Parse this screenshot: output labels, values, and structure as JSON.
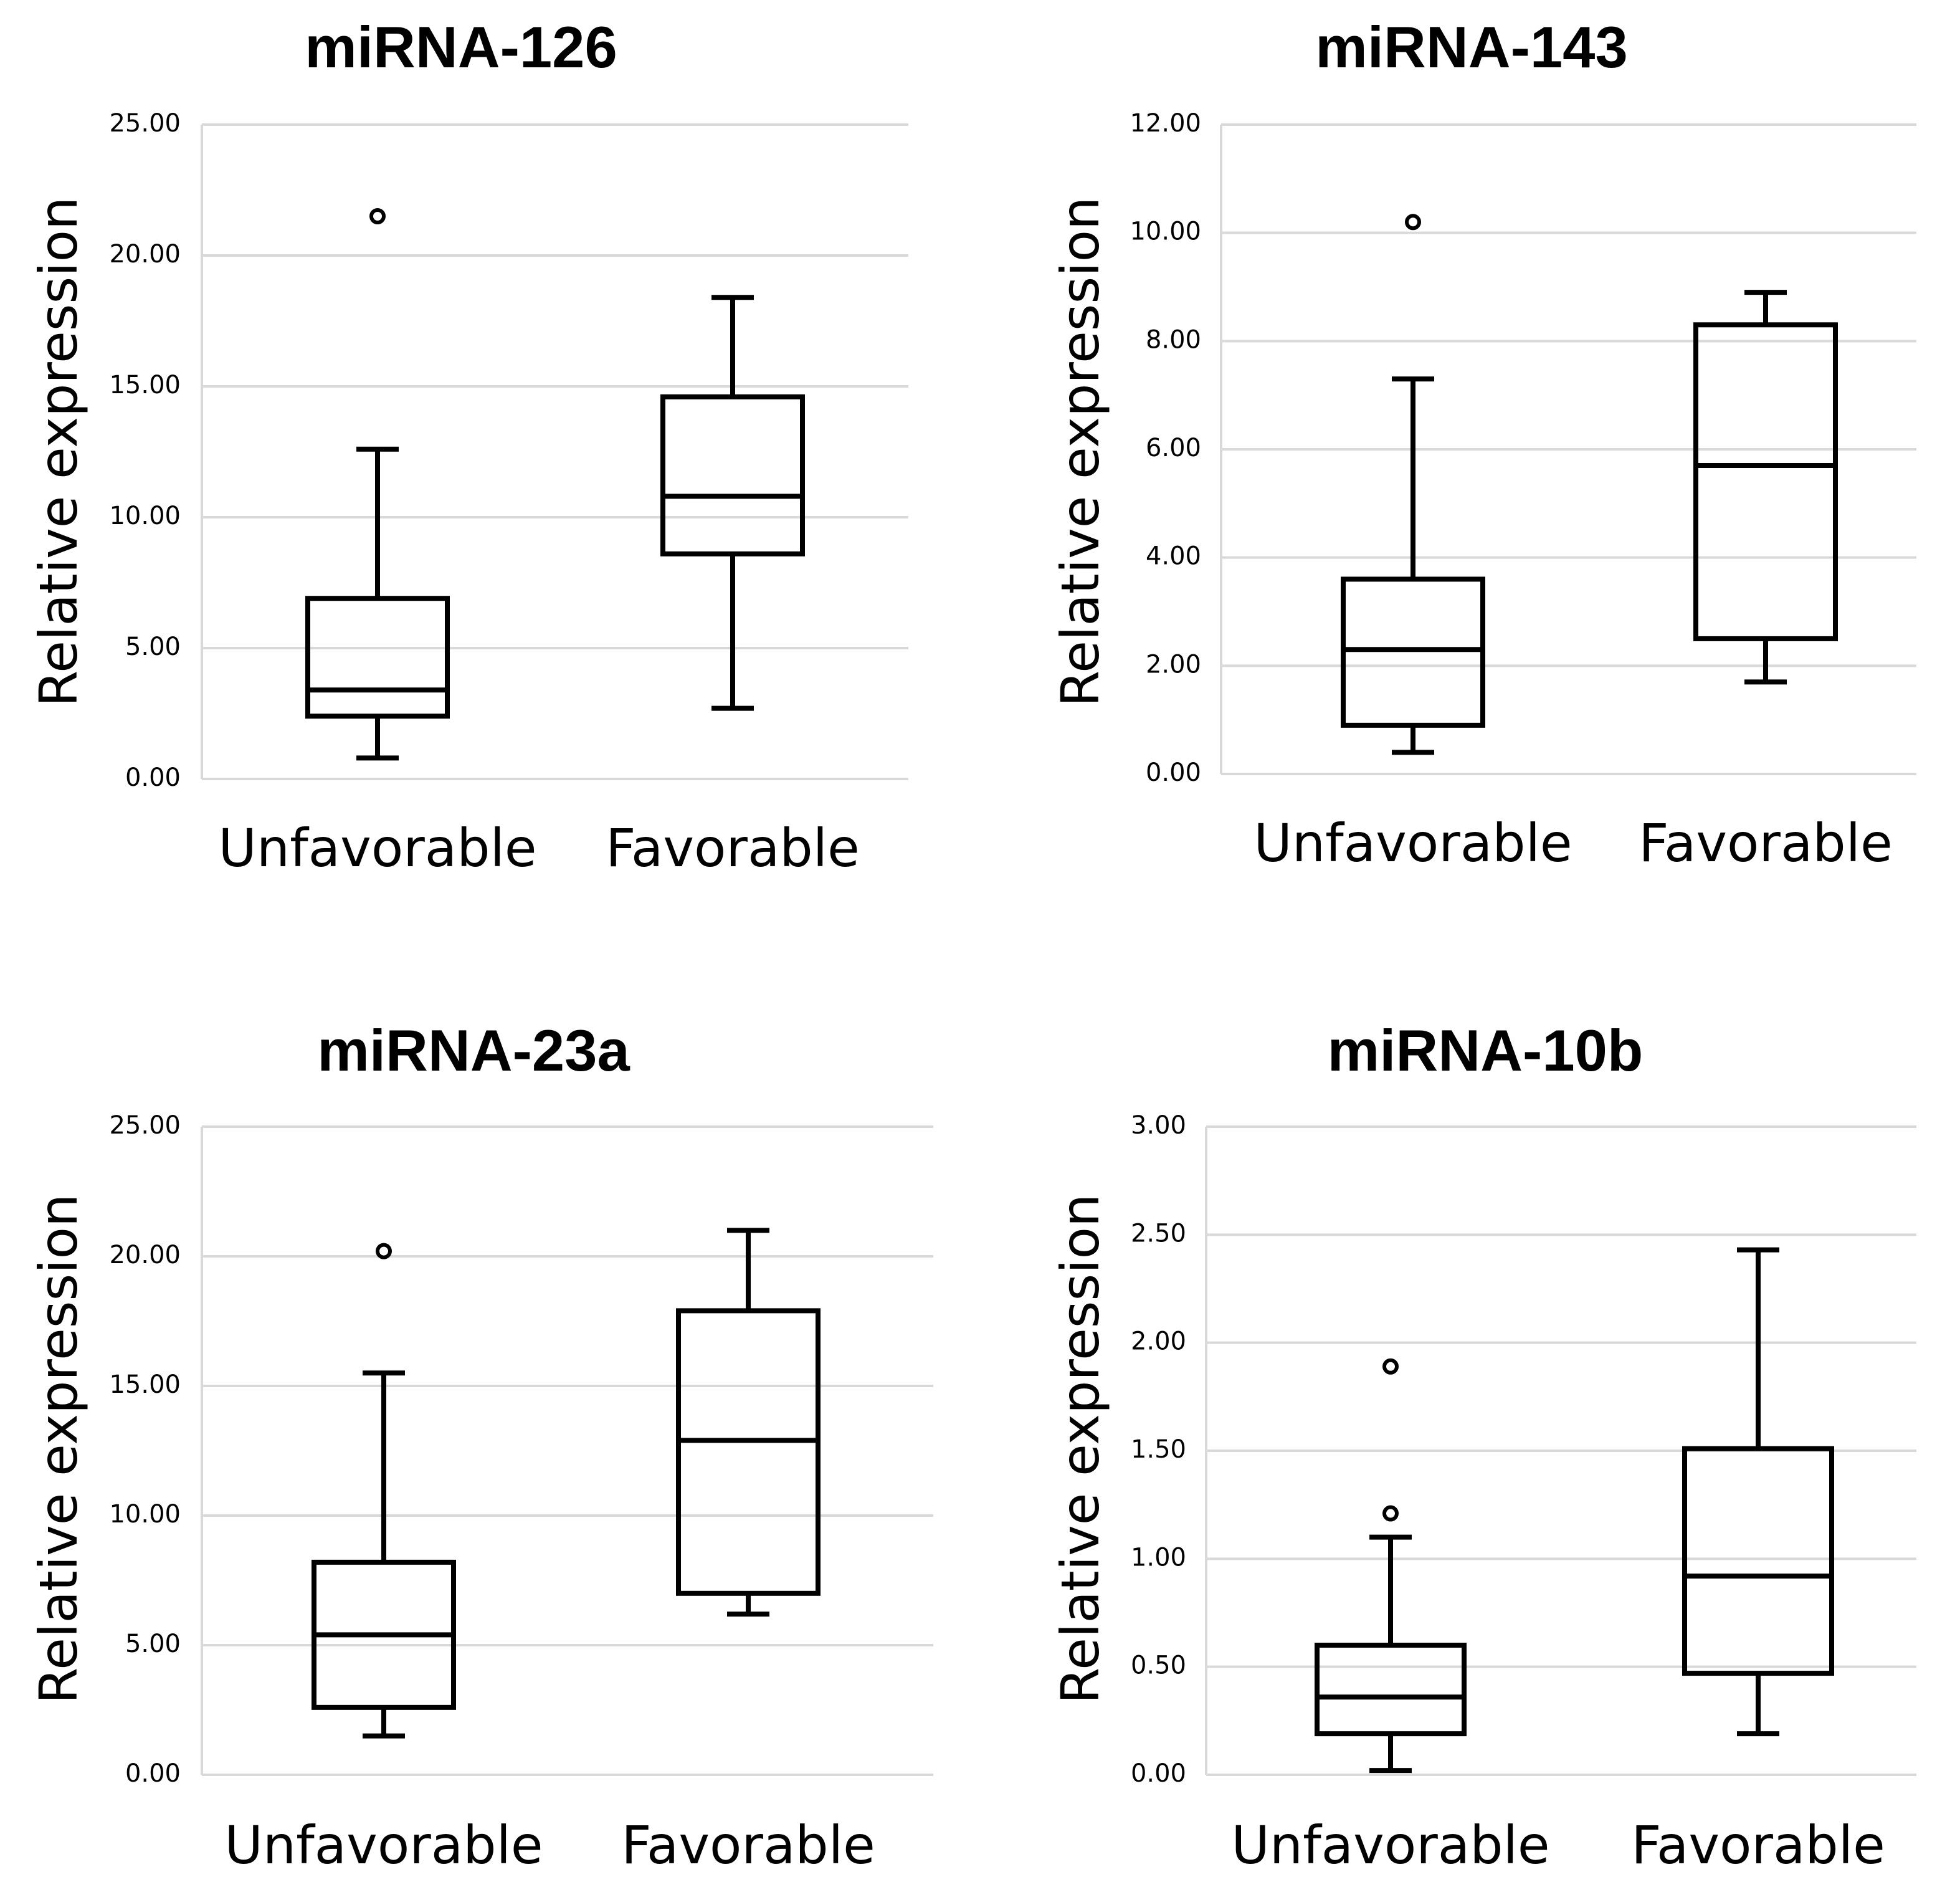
{
  "chart_data": [
    {
      "type": "box",
      "title": "miRNA-126",
      "xlabel": "",
      "ylabel": "Relative expression",
      "ylim": [
        0,
        25
      ],
      "yticks": [
        "0.00",
        "5.00",
        "10.00",
        "15.00",
        "20.00",
        "25.00"
      ],
      "categories": [
        "Unfavorable",
        "Favorable"
      ],
      "grid": true,
      "series": [
        {
          "name": "Unfavorable",
          "whisker_low": 0.8,
          "q1": 2.4,
          "median": 3.4,
          "q3": 6.9,
          "whisker_high": 12.6,
          "outliers": [
            21.5
          ]
        },
        {
          "name": "Favorable",
          "whisker_low": 2.7,
          "q1": 8.6,
          "median": 10.8,
          "q3": 14.6,
          "whisker_high": 18.4,
          "outliers": []
        }
      ]
    },
    {
      "type": "box",
      "title": "miRNA-143",
      "xlabel": "",
      "ylabel": "Relative expression",
      "ylim": [
        0,
        12
      ],
      "yticks": [
        "0.00",
        "2.00",
        "4.00",
        "6.00",
        "8.00",
        "10.00",
        "12.00"
      ],
      "categories": [
        "Unfavorable",
        "Favorable"
      ],
      "grid": true,
      "series": [
        {
          "name": "Unfavorable",
          "whisker_low": 0.4,
          "q1": 0.9,
          "median": 2.3,
          "q3": 3.6,
          "whisker_high": 7.3,
          "outliers": [
            10.2
          ]
        },
        {
          "name": "Favorable",
          "whisker_low": 1.7,
          "q1": 2.5,
          "median": 5.7,
          "q3": 8.3,
          "whisker_high": 8.9,
          "outliers": []
        }
      ]
    },
    {
      "type": "box",
      "title": "miRNA-23a",
      "xlabel": "",
      "ylabel": "Relative expression",
      "ylim": [
        0,
        25
      ],
      "yticks": [
        "0.00",
        "5.00",
        "10.00",
        "15.00",
        "20.00",
        "25.00"
      ],
      "categories": [
        "Unfavorable",
        "Favorable"
      ],
      "grid": true,
      "series": [
        {
          "name": "Unfavorable",
          "whisker_low": 1.5,
          "q1": 2.6,
          "median": 5.4,
          "q3": 8.2,
          "whisker_high": 15.5,
          "outliers": [
            20.2
          ]
        },
        {
          "name": "Favorable",
          "whisker_low": 6.2,
          "q1": 7.0,
          "median": 12.9,
          "q3": 17.9,
          "whisker_high": 21.0,
          "outliers": []
        }
      ]
    },
    {
      "type": "box",
      "title": "miRNA-10b",
      "xlabel": "",
      "ylabel": "Relative expression",
      "ylim": [
        0,
        3
      ],
      "yticks": [
        "0.00",
        "0.50",
        "1.00",
        "1.50",
        "2.00",
        "2.50",
        "3.00"
      ],
      "categories": [
        "Unfavorable",
        "Favorable"
      ],
      "grid": true,
      "series": [
        {
          "name": "Unfavorable",
          "whisker_low": 0.02,
          "q1": 0.19,
          "median": 0.36,
          "q3": 0.6,
          "whisker_high": 1.1,
          "outliers": [
            1.21,
            1.89
          ]
        },
        {
          "name": "Favorable",
          "whisker_low": 0.19,
          "q1": 0.47,
          "median": 0.92,
          "q3": 1.51,
          "whisker_high": 2.43,
          "outliers": []
        }
      ]
    }
  ]
}
